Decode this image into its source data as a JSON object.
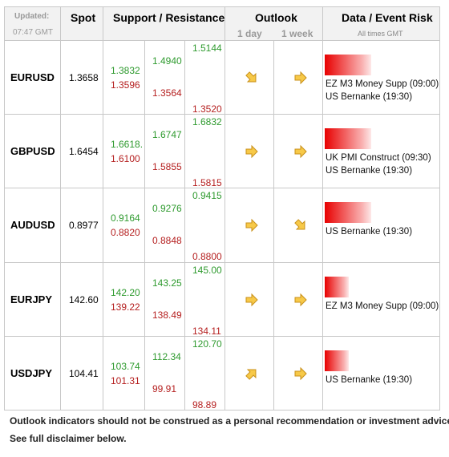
{
  "header": {
    "updated_label": "Updated:",
    "updated_time": "07:47 GMT",
    "spot": "Spot",
    "support_resistance": "Support / Resistance",
    "outlook": "Outlook",
    "outlook_1d": "1 day",
    "outlook_1w": "1 week",
    "risk": "Data / Event Risk",
    "risk_note": "All times GMT"
  },
  "rows": [
    {
      "pair": "EURUSD",
      "spot": "1.3658",
      "levels": [
        [
          "1.3832",
          "1.3596"
        ],
        [
          "1.4940",
          "1.3564"
        ],
        [
          "1.5144",
          "1.3520"
        ]
      ],
      "events": [
        "EZ M3 Money Supp (09:00)",
        "US Bernanke (19:30)"
      ]
    },
    {
      "pair": "GBPUSD",
      "spot": "1.6454",
      "levels": [
        [
          "1.6618.",
          "1.6100"
        ],
        [
          "1.6747",
          "1.5855"
        ],
        [
          "1.6832",
          "1.5815"
        ]
      ],
      "events": [
        "UK PMI Construct (09:30)",
        "US Bernanke (19:30)"
      ]
    },
    {
      "pair": "AUDUSD",
      "spot": "0.8977",
      "levels": [
        [
          "0.9164",
          "0.8820"
        ],
        [
          "0.9276",
          "0.8848"
        ],
        [
          "0.9415",
          "0.8800"
        ]
      ],
      "events": [
        "US Bernanke (19:30)"
      ]
    },
    {
      "pair": "EURJPY",
      "spot": "142.60",
      "levels": [
        [
          "142.20",
          "139.22"
        ],
        [
          "143.25",
          "138.49"
        ],
        [
          "145.00",
          "134.11"
        ]
      ],
      "events": [
        "EZ M3 Money Supp (09:00)"
      ]
    },
    {
      "pair": "USDJPY",
      "spot": "104.41",
      "levels": [
        [
          "103.74",
          "101.31"
        ],
        [
          "112.34",
          "99.91"
        ],
        [
          "120.70",
          "98.89"
        ]
      ],
      "events": [
        "US Bernanke (19:30)"
      ]
    }
  ],
  "footer": [
    "Outlook indicators should not be construed as a personal recommendation or investment advice.",
    "See full disclaimer below."
  ]
}
